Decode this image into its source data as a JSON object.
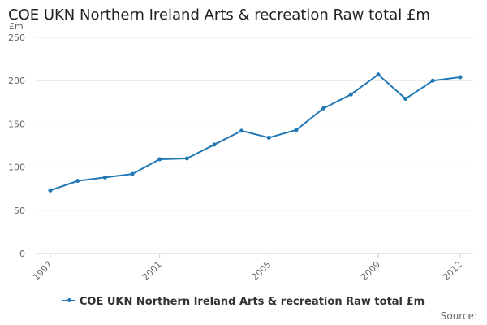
{
  "chart_data": {
    "type": "line",
    "title": "COE UKN Northern Ireland Arts & recreation Raw total £m",
    "ylabel": "£m",
    "xlabel": "",
    "ylim": [
      0,
      250
    ],
    "y_ticks": [
      0,
      50,
      100,
      150,
      200,
      250
    ],
    "x_ticks": [
      "1997",
      "2001",
      "2005",
      "2009",
      "2012"
    ],
    "grid": true,
    "legend_position": "bottom",
    "colors": {
      "series": "#1f77b4",
      "grid": "#e6e6e6"
    },
    "x": [
      1997,
      1998,
      1999,
      2000,
      2001,
      2002,
      2003,
      2004,
      2005,
      2006,
      2007,
      2008,
      2009,
      2010,
      2011,
      2012
    ],
    "series": [
      {
        "name": "COE UKN Northern Ireland Arts & recreation Raw total £m",
        "values": [
          73,
          84,
          88,
          92,
          109,
          110,
          126,
          142,
          134,
          143,
          168,
          184,
          207,
          179,
          200,
          204
        ]
      }
    ]
  },
  "footer": {
    "source_label": "Source:"
  }
}
